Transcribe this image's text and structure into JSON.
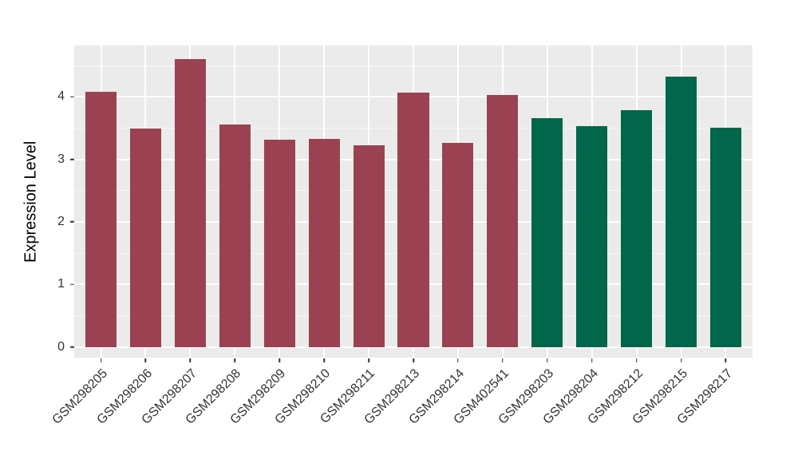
{
  "chart_data": {
    "type": "bar",
    "title": "",
    "xlabel": "",
    "ylabel": "Expression Level",
    "categories": [
      "GSM298205",
      "GSM298206",
      "GSM298207",
      "GSM298208",
      "GSM298209",
      "GSM298210",
      "GSM298211",
      "GSM298213",
      "GSM298214",
      "GSM402541",
      "GSM298203",
      "GSM298204",
      "GSM298212",
      "GSM298215",
      "GSM298217"
    ],
    "values": [
      4.08,
      3.49,
      4.6,
      3.56,
      3.32,
      3.33,
      3.22,
      4.07,
      3.26,
      4.03,
      3.66,
      3.53,
      3.79,
      4.32,
      3.51
    ],
    "bar_colors": [
      "#9A4251",
      "#9A4251",
      "#9A4251",
      "#9A4251",
      "#9A4251",
      "#9A4251",
      "#9A4251",
      "#9A4251",
      "#9A4251",
      "#9A4251",
      "#01664A",
      "#01664A",
      "#01664A",
      "#01664A",
      "#01664A"
    ],
    "group_colors": {
      "left_group": "#9A4251",
      "right_group": "#01664A"
    },
    "yticks": [
      0,
      1,
      2,
      3,
      4
    ],
    "yticks_minor": [
      0.5,
      1.5,
      2.5,
      3.5,
      4.5
    ],
    "ylim": [
      -0.17,
      4.82
    ],
    "xlim": [
      0.4,
      15.6
    ],
    "bar_width_units": 0.7,
    "grid": true,
    "legend": "none",
    "panel_bg": "#EBEBEB",
    "grid_major_color": "#FFFFFF",
    "tick_color": "#333333"
  }
}
